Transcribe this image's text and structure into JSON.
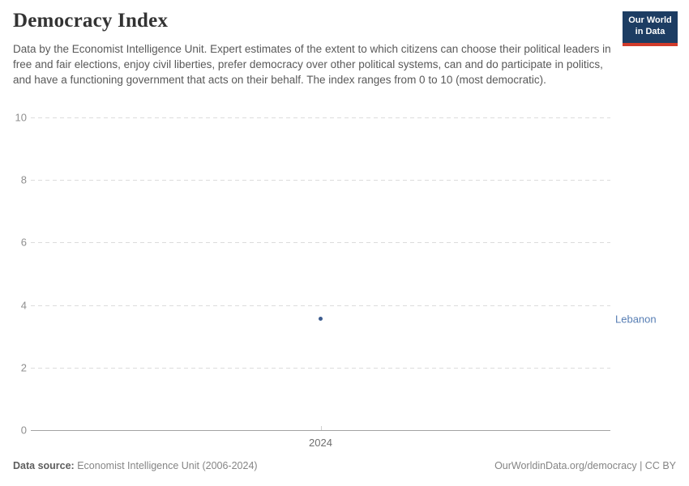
{
  "header": {
    "title": "Democracy Index",
    "subtitle": "Data by the Economist Intelligence Unit. Expert estimates of the extent to which citizens can choose their political leaders in free and fair elections, enjoy civil liberties, prefer democracy over other political systems, can and do participate in politics, and have a functioning government that acts on their behalf. The index ranges from 0 to 10 (most democratic).",
    "logo": {
      "line1": "Our World",
      "line2": "in Data",
      "background_color": "#1d3d63",
      "accent_color": "#d13b2b"
    }
  },
  "chart_data": {
    "type": "scatter",
    "title": "Democracy Index",
    "x": [
      2024
    ],
    "series": [
      {
        "name": "Lebanon",
        "values": [
          3.56
        ],
        "point_color": "#3d5c8f",
        "label_color": "#577eb4"
      }
    ],
    "xlabel": "",
    "ylabel": "",
    "ylim": [
      0,
      10
    ],
    "yticks": [
      0,
      2,
      4,
      6,
      8,
      10
    ],
    "xtick_labels": [
      "2024"
    ],
    "grid": "horizontal dashed, zero line solid",
    "legend_position": "right entity label",
    "gridline_color": "#dcdcdc",
    "axis_line_color": "#a3a3a3",
    "tick_label_color": "#8f8f8f"
  },
  "footer": {
    "source_label": "Data source:",
    "source_value": "Economist Intelligence Unit (2006-2024)",
    "credit": "OurWorldinData.org/democracy | CC BY"
  }
}
